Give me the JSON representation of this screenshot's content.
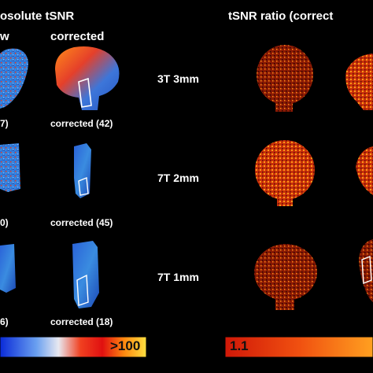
{
  "left_panel": {
    "title": "osolute tSNR",
    "col_raw": "w",
    "col_corrected": "corrected",
    "rows": [
      {
        "raw_caption": "7)",
        "corrected_caption": "corrected (42)"
      },
      {
        "raw_caption": "0)",
        "corrected_caption": "corrected (45)"
      },
      {
        "raw_caption": "6)",
        "corrected_caption": "corrected (18)"
      }
    ],
    "colorbar_max": ">100"
  },
  "middle": {
    "resolutions": [
      "3T 3mm",
      "7T 2mm",
      "7T 1mm"
    ]
  },
  "right_panel": {
    "title": "tSNR ratio (correct",
    "colorbar_min": "1.1"
  },
  "colors": {
    "cold": "#1f5fd6",
    "warm": "#e03a10",
    "hot": "#ffc000"
  }
}
